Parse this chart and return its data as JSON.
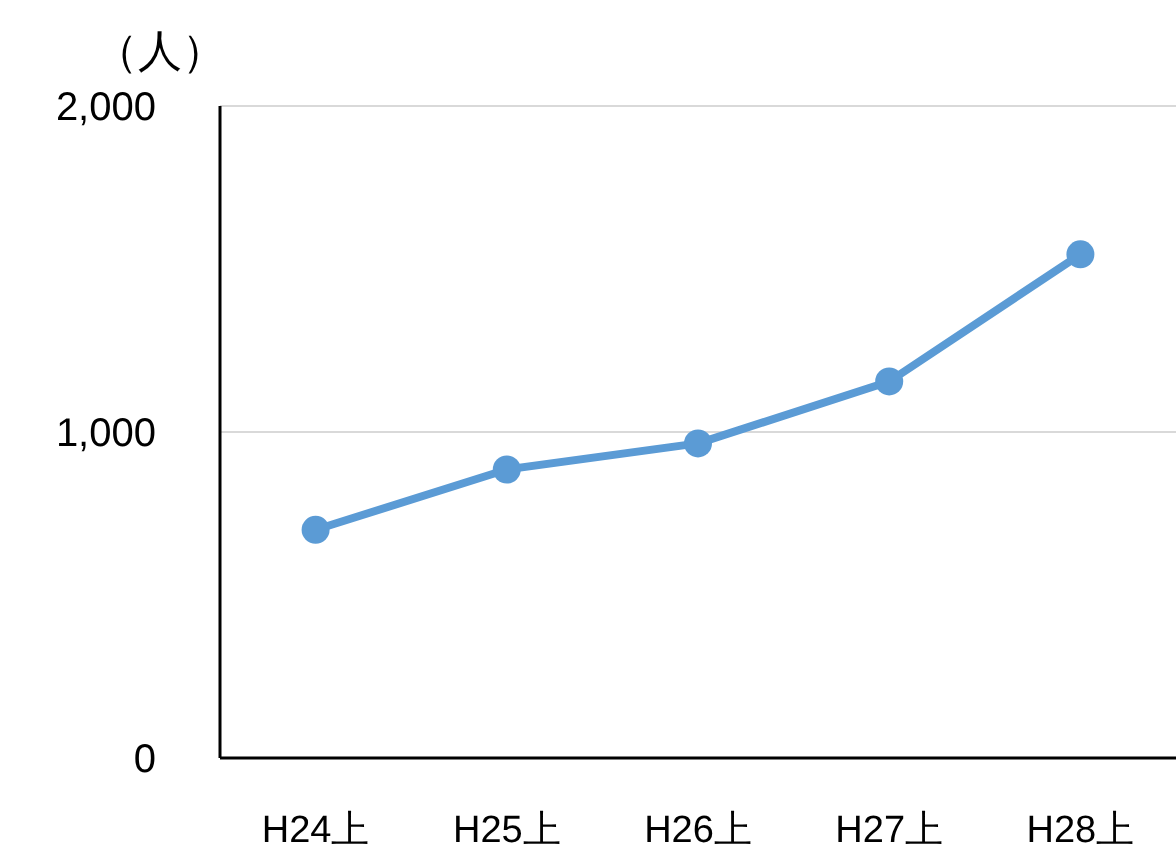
{
  "chart_data": {
    "type": "line",
    "ylabel": "（人）",
    "categories": [
      "H24上",
      "H25上",
      "H26上",
      "H27上",
      "H28上"
    ],
    "series": [
      {
        "color": "#5b9bd5",
        "values": [
          700,
          885,
          965,
          1155,
          1545
        ]
      }
    ],
    "ylim": [
      0,
      2000
    ],
    "yticks": [
      0,
      {
        "value": 1000,
        "label": "1,000"
      },
      {
        "value": 2000,
        "label": "2,000"
      }
    ],
    "grid": "y",
    "marker": "circle",
    "line_style": "solid"
  }
}
